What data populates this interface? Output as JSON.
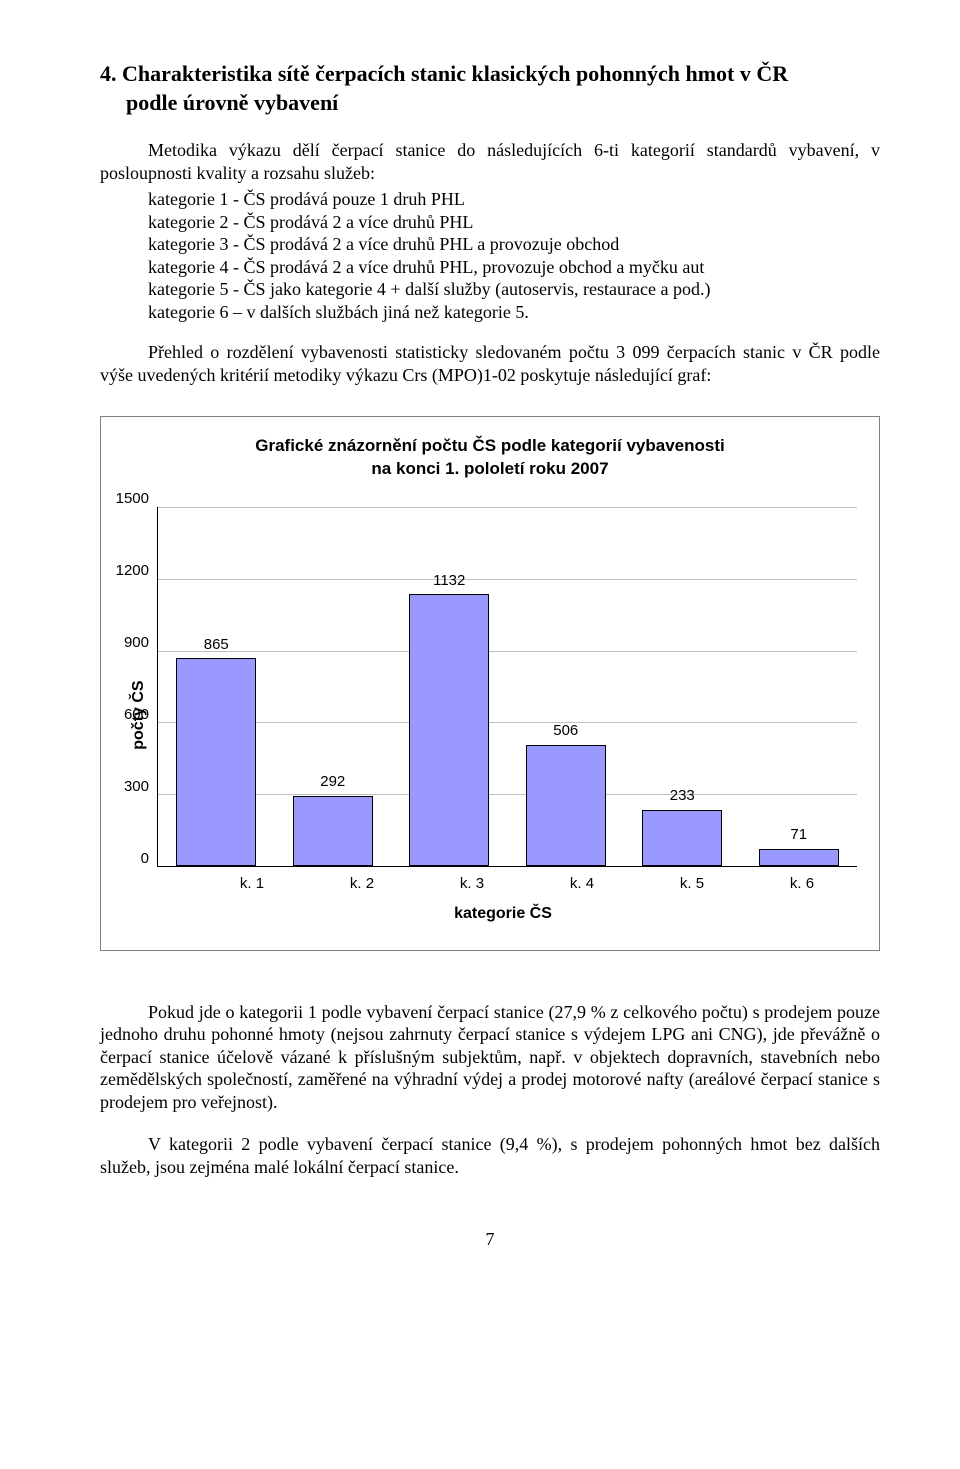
{
  "section": {
    "number": "4.",
    "title_line1": "Charakteristika sítě čerpacích stanic klasických pohonných hmot v ČR",
    "title_line2": "podle úrovně vybavení"
  },
  "intro": "Metodika výkazu dělí čerpací stanice do následujících 6-ti kategorií standardů vybavení, v posloupnosti kvality a rozsahu služeb:",
  "categories": [
    "kategorie 1 - ČS prodává pouze 1 druh PHL",
    "kategorie 2 - ČS prodává 2 a více druhů PHL",
    "kategorie 3 - ČS prodává 2 a více druhů PHL a provozuje obchod",
    "kategorie 4 - ČS prodává 2 a více druhů PHL, provozuje obchod a myčku aut",
    "kategorie 5 - ČS jako kategorie 4 + další služby (autoservis, restaurace a pod.)",
    "kategorie 6 – v dalších službách jiná než kategorie 5."
  ],
  "overview": "Přehled o rozdělení vybavenosti statisticky sledovaném počtu 3 099 čerpacích stanic v ČR podle výše uvedených kritérií metodiky výkazu Crs (MPO)1-02 poskytuje následující graf:",
  "chart": {
    "type": "bar",
    "title_line1": "Grafické znázornění počtu ČS podle kategorií vybavenosti",
    "title_line2": "na konci 1. pololetí roku 2007",
    "ylabel": "počty ČS",
    "xlabel": "kategorie ČS",
    "ymax": 1500,
    "ytick_step": 300,
    "yticks": [
      "1500",
      "1200",
      "900",
      "600",
      "300",
      "0"
    ],
    "grid_color": "#c0c0c0",
    "bar_fill": "#9999ff",
    "bar_border": "#000000",
    "background": "#ffffff",
    "categories": [
      "k. 1",
      "k. 2",
      "k. 3",
      "k. 4",
      "k. 5",
      "k. 6"
    ],
    "values": [
      865,
      292,
      1132,
      506,
      233,
      71
    ]
  },
  "para1": "Pokud jde o kategorii 1 podle vybavení čerpací stanice (27,9 % z celkového počtu) s prodejem pouze jednoho druhu pohonné hmoty (nejsou zahrnuty čerpací stanice s výdejem LPG ani CNG), jde převážně o čerpací stanice účelově vázané k příslušným subjektům, např. v objektech dopravních, stavebních nebo zemědělských společností, zaměřené na výhradní výdej a prodej motorové nafty (areálové čerpací stanice s prodejem pro veřejnost).",
  "para2": "V kategorii 2 podle vybavení čerpací stanice (9,4 %), s prodejem pohonných hmot bez dalších služeb, jsou zejména malé lokální čerpací stanice.",
  "page_number": "7"
}
